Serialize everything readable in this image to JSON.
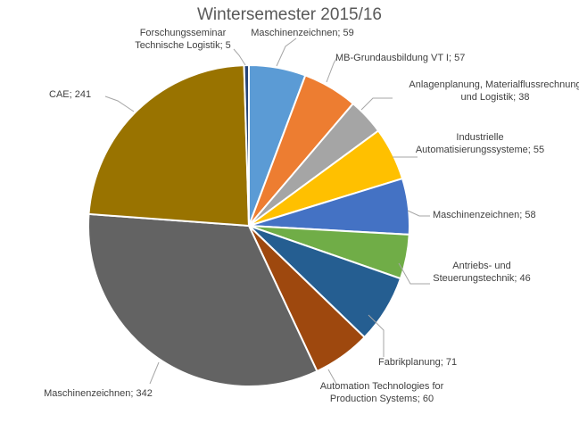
{
  "chart_data": {
    "type": "pie",
    "title": "Wintersemester 2015/16",
    "slices": [
      {
        "label_lines": [
          "Maschinenzeichnen; 59"
        ],
        "value": 59,
        "color": "#5b9bd5"
      },
      {
        "label_lines": [
          "MB-Grundausbildung VT I; 57"
        ],
        "value": 57,
        "color": "#ed7d31"
      },
      {
        "label_lines": [
          "Anlagenplanung, Materialflussrechnung",
          "und Logistik; 38"
        ],
        "value": 38,
        "color": "#a5a5a5"
      },
      {
        "label_lines": [
          "Industrielle",
          "Automatisierungssysteme; 55"
        ],
        "value": 55,
        "color": "#ffc000"
      },
      {
        "label_lines": [
          "Maschinenzeichnen; 58"
        ],
        "value": 58,
        "color": "#4472c4"
      },
      {
        "label_lines": [
          "Antriebs- und",
          "Steuerungstechnik; 46"
        ],
        "value": 46,
        "color": "#70ad47"
      },
      {
        "label_lines": [
          "Fabrikplanung; 71"
        ],
        "value": 71,
        "color": "#255e91"
      },
      {
        "label_lines": [
          "Automation Technologies for",
          "Production Systems; 60"
        ],
        "value": 60,
        "color": "#9e480e"
      },
      {
        "label_lines": [
          "Maschinenzeichnen; 342"
        ],
        "value": 342,
        "color": "#636363"
      },
      {
        "label_lines": [
          "CAE; 241"
        ],
        "value": 241,
        "color": "#997300"
      },
      {
        "label_lines": [
          "Forschungsseminar",
          "Technische Logistik; 5"
        ],
        "value": 5,
        "color": "#264478"
      }
    ],
    "legend": "none",
    "start_angle": "12 o'clock",
    "direction": "clockwise"
  }
}
